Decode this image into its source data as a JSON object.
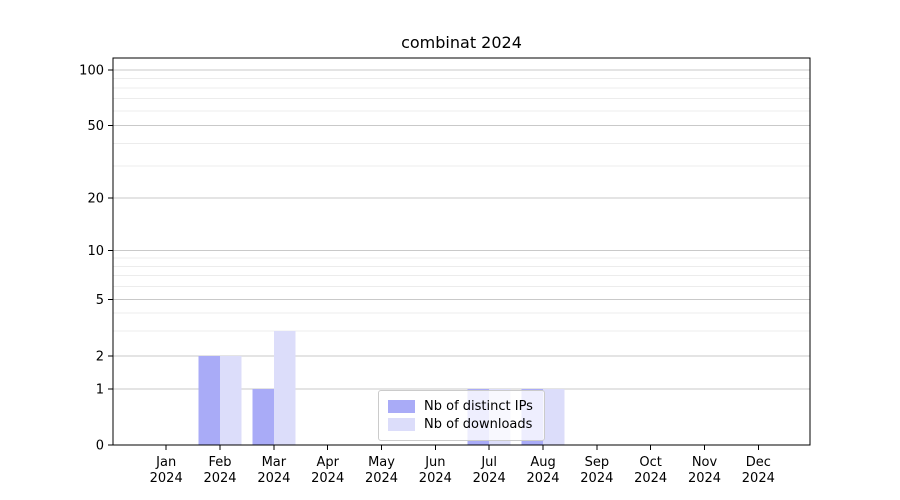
{
  "chart_data": {
    "type": "bar",
    "title": "combinat 2024",
    "categories": [
      {
        "m": "Jan",
        "y": "2024"
      },
      {
        "m": "Feb",
        "y": "2024"
      },
      {
        "m": "Mar",
        "y": "2024"
      },
      {
        "m": "Apr",
        "y": "2024"
      },
      {
        "m": "May",
        "y": "2024"
      },
      {
        "m": "Jun",
        "y": "2024"
      },
      {
        "m": "Jul",
        "y": "2024"
      },
      {
        "m": "Aug",
        "y": "2024"
      },
      {
        "m": "Sep",
        "y": "2024"
      },
      {
        "m": "Oct",
        "y": "2024"
      },
      {
        "m": "Nov",
        "y": "2024"
      },
      {
        "m": "Dec",
        "y": "2024"
      }
    ],
    "series": [
      {
        "name": "Nb of distinct IPs",
        "color": "#a9abf7",
        "values": [
          0,
          2,
          1,
          0,
          0,
          0,
          1,
          1,
          0,
          0,
          0,
          0
        ]
      },
      {
        "name": "Nb of downloads",
        "color": "#dcddfa",
        "values": [
          0,
          2,
          3,
          0,
          0,
          0,
          1,
          1,
          0,
          0,
          0,
          0
        ]
      }
    ],
    "y_axis": {
      "scale": "log-like",
      "range": [
        0,
        100
      ],
      "ticks": [
        0,
        1,
        2,
        5,
        10,
        20,
        50,
        100
      ],
      "minor_gridlines": [
        3,
        4,
        6,
        7,
        8,
        9,
        30,
        40,
        60,
        70,
        80,
        90
      ]
    },
    "legend": {
      "position": "lower-center-inside"
    },
    "colors": {
      "grid_major": "#c9c9c9",
      "grid_minor": "#ececec",
      "spine": "#000000",
      "text": "#000000",
      "background": "#ffffff"
    }
  }
}
